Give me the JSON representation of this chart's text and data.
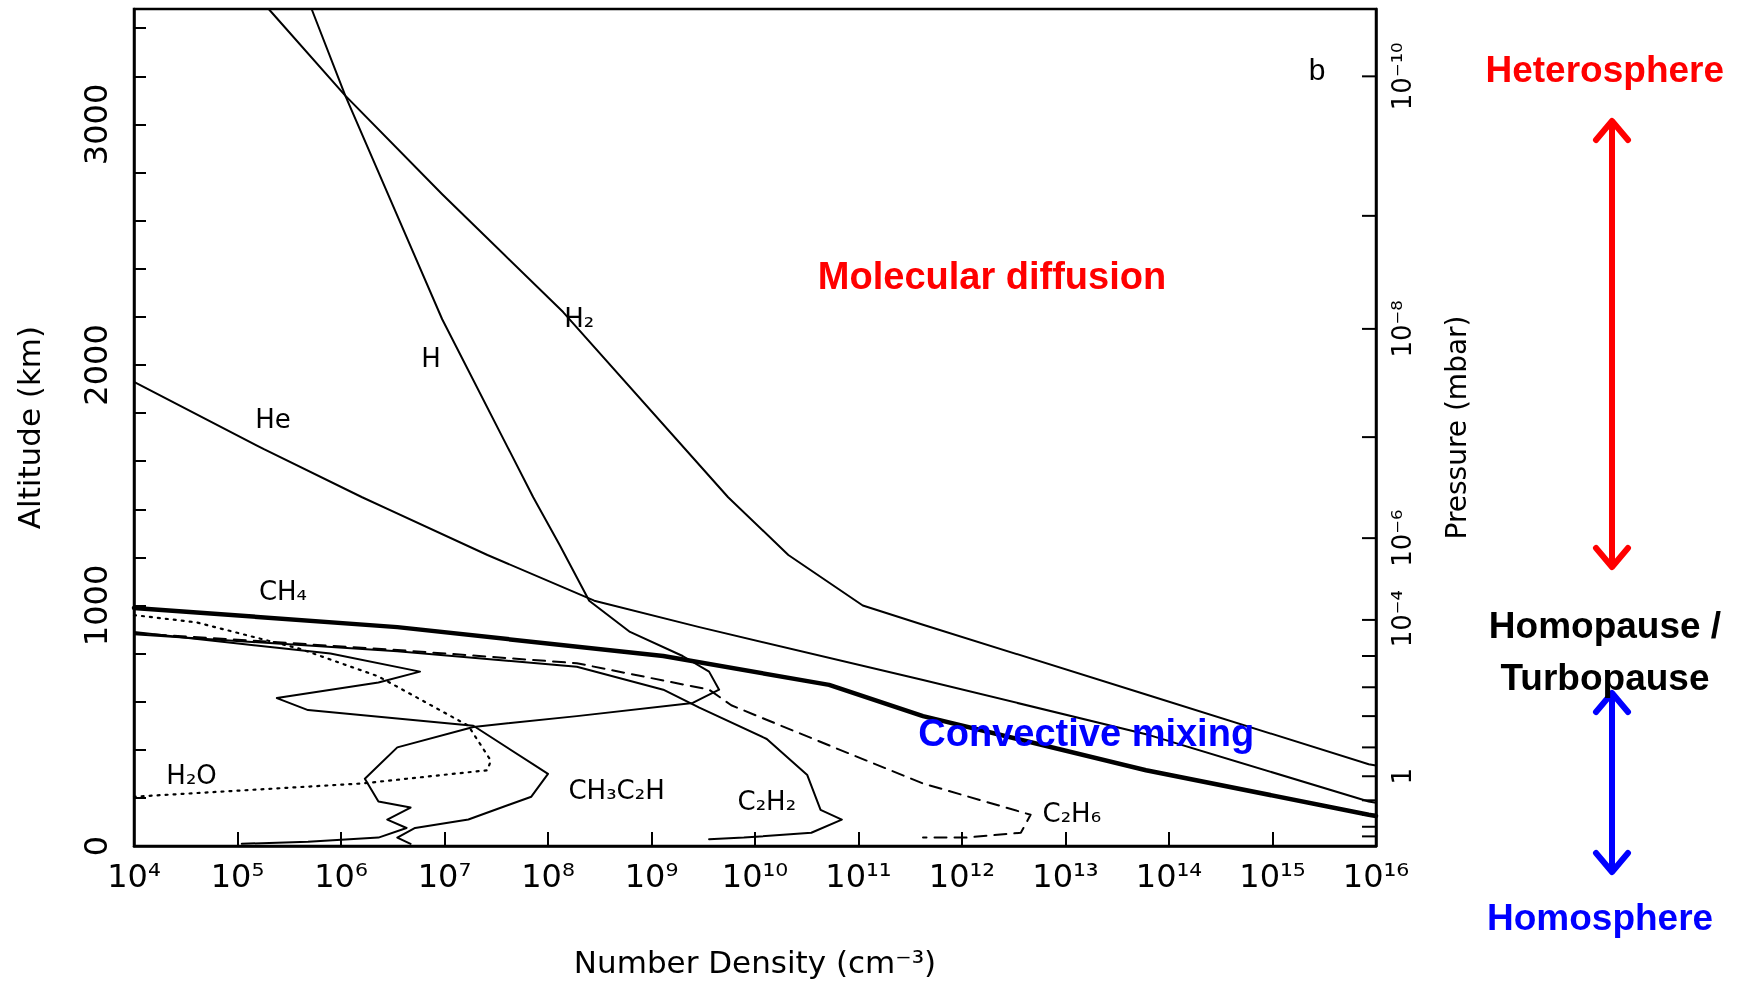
{
  "chart_data": {
    "type": "line",
    "xlabel": "Number Density (cm⁻³)",
    "ylabel": "Altitude (km)",
    "y2label": "Pressure (mbar)",
    "log": "x",
    "marker": "none",
    "xlim": [
      10000.0,
      1e+16
    ],
    "xticks": [
      {
        "value": 10000.0,
        "label": "10⁴"
      },
      {
        "value": 100000.0,
        "label": "10⁵"
      },
      {
        "value": 1000000.0,
        "label": "10⁶"
      },
      {
        "value": 10000000.0,
        "label": "10⁷"
      },
      {
        "value": 100000000.0,
        "label": "10⁸"
      },
      {
        "value": 1000000000.0,
        "label": "10⁹"
      },
      {
        "value": 10000000000.0,
        "label": "10¹⁰"
      },
      {
        "value": 100000000000.0,
        "label": "10¹¹"
      },
      {
        "value": 1000000000000.0,
        "label": "10¹²"
      },
      {
        "value": 10000000000000.0,
        "label": "10¹³"
      },
      {
        "value": 100000000000000.0,
        "label": "10¹⁴"
      },
      {
        "value": 1000000000000000.0,
        "label": "10¹⁵"
      },
      {
        "value": 1e+16,
        "label": "10¹⁶"
      }
    ],
    "ylim": [
      0,
      3480
    ],
    "yticks": [
      0,
      {
        "value": 200,
        "label": null
      },
      {
        "value": 400,
        "label": null
      },
      {
        "value": 600,
        "label": null
      },
      {
        "value": 800,
        "label": null
      },
      1000,
      {
        "value": 1200,
        "label": null
      },
      {
        "value": 1400,
        "label": null
      },
      {
        "value": 1600,
        "label": null
      },
      {
        "value": 1800,
        "label": null
      },
      2000,
      {
        "value": 2200,
        "label": null
      },
      {
        "value": 2400,
        "label": null
      },
      {
        "value": 2600,
        "label": null
      },
      {
        "value": 2800,
        "label": null
      },
      3000,
      {
        "value": 3200,
        "label": null
      },
      {
        "value": 3400,
        "label": null
      }
    ],
    "annotations": [
      "Molecular diffusion",
      "Convective mixing",
      "b",
      "Heterosphere",
      "Homopause / Turbopause",
      "Homosphere",
      "10⁻¹⁰",
      "10⁻⁸",
      "10⁻⁶",
      "10⁻⁴",
      "1"
    ],
    "series": [
      {
        "name": "H₂",
        "color": "#000000",
        "x": [
          200000.0,
          1100000.0,
          9500000.0,
          140000000.0,
          5500000000.0,
          21000000000.0,
          110000000000.0,
          420000000000.0,
          60000000000000.0,
          8500000000000000.0,
          1e+16
        ],
        "values": [
          3480,
          3120,
          2710,
          2220,
          1450,
          1210,
          1000,
          920,
          630,
          340,
          335
        ]
      },
      {
        "name": "H",
        "color": "#000000",
        "x": [
          520000.0,
          1100000.0,
          9500000.0,
          72000000.0,
          130000000.0,
          250000000.0,
          620000000.0,
          2000000000.0,
          3600000000.0,
          4500000000.0,
          2500000000.0,
          190000000.0,
          19000000.0,
          3500000.0,
          1700000.0,
          2300000.0,
          4700000.0,
          2800000.0,
          4300000.0,
          2300000.0,
          480000.0,
          110000.0
        ],
        "values": [
          3480,
          3120,
          2190,
          1450,
          1250,
          1020,
          890,
          790,
          725,
          650,
          595,
          540,
          495,
          410,
          280,
          185,
          160,
          110,
          75,
          35,
          18,
          9
        ]
      },
      {
        "name": "He",
        "color": "#000000",
        "x": [
          10000.0,
          180000.0,
          1600000.0,
          26000000.0,
          280000000.0,
          2900000000.0,
          420000000000.0,
          60000000000000.0,
          8500000000000000.0,
          1e+16
        ],
        "values": [
          1930,
          1650,
          1450,
          1210,
          1020,
          910,
          690,
          465,
          185,
          180
        ]
      },
      {
        "name": "CH₄",
        "color": "#000000",
        "x": [
          10000.0,
          3500000.0,
          1300000000.0,
          52000000000.0,
          420000000000.0,
          60000000000000.0,
          8500000000000000.0,
          1e+16
        ],
        "values": [
          990,
          910,
          790,
          670,
          540,
          315,
          130,
          125
        ]
      },
      {
        "name": "H₂O",
        "color": "#000000",
        "line_style": "dotted",
        "x": [
          10000.0,
          40000.0,
          400000.0,
          2300000.0,
          17000000.0,
          28000000.0,
          26000000.0,
          1600000.0,
          10000.0
        ],
        "values": [
          960,
          930,
          820,
          705,
          500,
          355,
          315,
          260,
          205
        ]
      },
      {
        "name": "CH₃C₂H",
        "color": "#000000",
        "x": [
          10000.0,
          790000.0,
          5800000.0,
          2300000.0,
          240000.0,
          480000.0,
          19000000.0,
          100000000.0,
          69000000.0,
          17000000.0,
          5200000.0,
          3500000.0,
          4700000.0
        ],
        "values": [
          890,
          800,
          725,
          680,
          615,
          565,
          500,
          300,
          205,
          110,
          75,
          35,
          9
        ]
      },
      {
        "name": "C₂H₂",
        "color": "#000000",
        "x": [
          10000.0,
          3500000.0,
          190000000.0,
          1300000000.0,
          2900000000.0,
          13000000000.0,
          32000000000.0,
          43000000000.0,
          69000000000.0,
          35000000000.0,
          7800000000.0,
          3600000000.0
        ],
        "values": [
          880,
          810,
          745,
          650,
          575,
          445,
          295,
          150,
          110,
          55,
          35,
          28
        ]
      },
      {
        "name": "C₂H₆",
        "color": "#000000",
        "line_style": "dashed",
        "x": [
          10000.0,
          3500000.0,
          190000000.0,
          3600000000.0,
          5900000000.0,
          58000000000.0,
          420000000000.0,
          4600000000000.0,
          3700000000000.0,
          1100000000000.0,
          420000000000.0
        ],
        "values": [
          885,
          815,
          760,
          650,
          585,
          410,
          260,
          130,
          55,
          35,
          35
        ]
      }
    ]
  }
}
